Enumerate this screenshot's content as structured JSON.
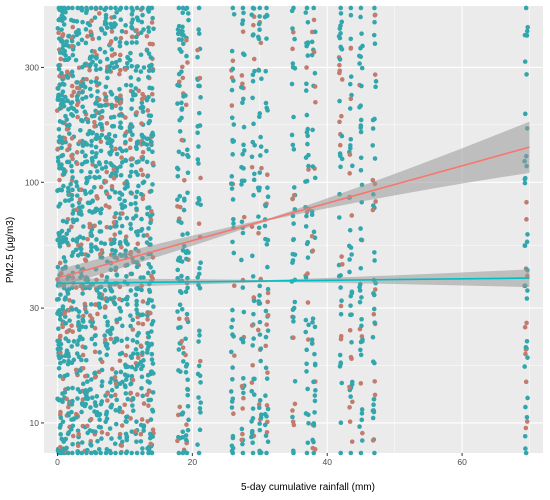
{
  "chart_data": {
    "type": "scatter",
    "title": "",
    "xlabel": "5-day cumulative rainfall (mm)",
    "ylabel": "PM2.5 (μg/m3)",
    "y_scale": "log10",
    "xlim": [
      -2,
      72
    ],
    "ylim": [
      7.5,
      540
    ],
    "x_ticks": [
      0,
      20,
      40,
      60
    ],
    "x_tick_labels": [
      "0",
      "20",
      "40",
      "60"
    ],
    "y_ticks": [
      10,
      30,
      100,
      300
    ],
    "y_tick_labels": [
      "10",
      "30",
      "100",
      "300"
    ],
    "grid": true,
    "legend": "none",
    "panel_background": "#ebebeb",
    "grid_color": "#ffffff",
    "series": [
      {
        "color": "#f8766d",
        "point_color": "#c27b6c",
        "trend": {
          "type": "linear",
          "x": [
            0,
            70
          ],
          "y": [
            40,
            140
          ]
        }
      },
      {
        "color": "#00bfc4",
        "point_color": "#32a6ad",
        "trend": {
          "type": "linear",
          "x": [
            0,
            70
          ],
          "y": [
            38,
            40
          ]
        }
      }
    ],
    "confidence_band_color": "#999999",
    "rainfall_columns_x": [
      0.2,
      0.6,
      1,
      1.6,
      2.2,
      3,
      3.6,
      4.3,
      5,
      5.7,
      6.4,
      7.2,
      7.9,
      8.6,
      9.4,
      10.2,
      11,
      11.8,
      12.6,
      13.5,
      14,
      18,
      18.6,
      19.2,
      21,
      26,
      27.5,
      29,
      30,
      31,
      35,
      37,
      38,
      42,
      43.5,
      45,
      47,
      69.5
    ],
    "y_range_points": [
      7.5,
      530
    ]
  }
}
